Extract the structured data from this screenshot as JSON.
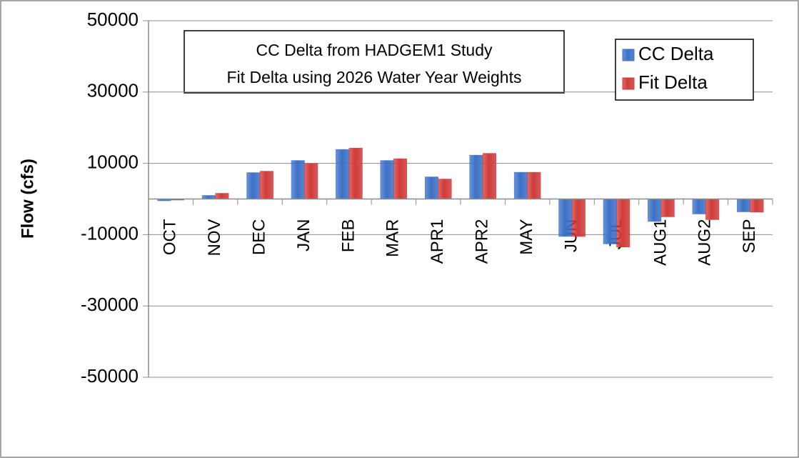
{
  "chart_data": {
    "type": "bar",
    "title": "CC Delta from HADGEM1 Study",
    "subtitle": "Fit Delta using 2026 Water Year Weights",
    "y_label": "Flow (cfs)",
    "categories": [
      "OCT",
      "NOV",
      "DEC",
      "JAN",
      "FEB",
      "MAR",
      "APR1",
      "APR2",
      "MAY",
      "JUN",
      "JUL",
      "AUG1",
      "AUG2",
      "SEP"
    ],
    "series": [
      {
        "name": "CC Delta",
        "color": "#3d70c6",
        "values": [
          -500,
          1000,
          7400,
          10800,
          13900,
          10800,
          6200,
          12300,
          7500,
          -10500,
          -12600,
          -6300,
          -4200,
          -3600
        ]
      },
      {
        "name": "Fit Delta",
        "color": "#d03b3b",
        "values": [
          -300,
          1600,
          7800,
          10000,
          14300,
          11300,
          5600,
          12800,
          7500,
          -10500,
          -13500,
          -5000,
          -5800,
          -3700
        ]
      }
    ],
    "ylim": [
      -50000,
      50000
    ],
    "yticks": [
      -50000,
      -30000,
      -10000,
      10000,
      30000,
      50000
    ],
    "grid": true,
    "legend": "top-right"
  }
}
